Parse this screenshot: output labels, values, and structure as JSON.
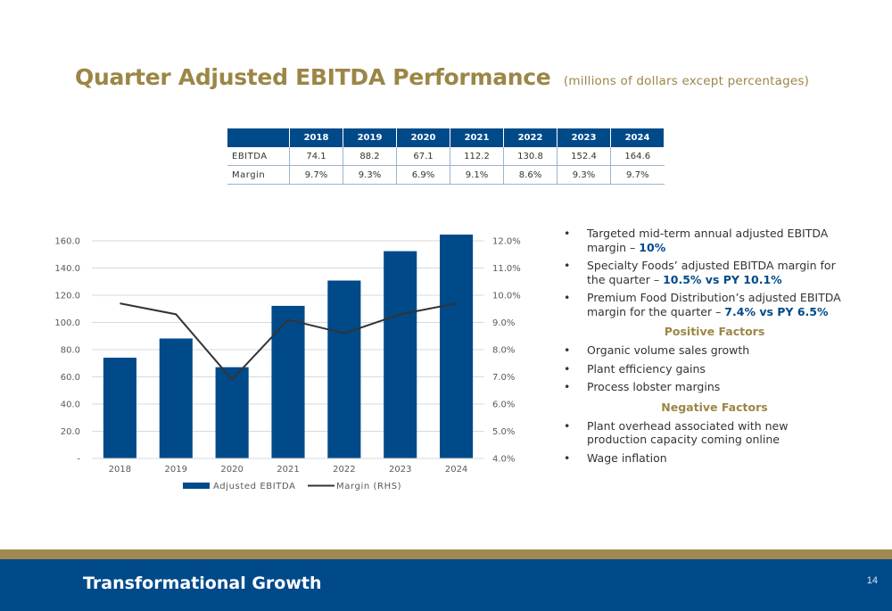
{
  "header": {
    "title": "Quarter Adjusted EBITDA Performance",
    "subtitle": "(millions of dollars except percentages)"
  },
  "table": {
    "years": [
      "2018",
      "2019",
      "2020",
      "2021",
      "2022",
      "2023",
      "2024"
    ],
    "rows": [
      {
        "label": "EBITDA",
        "values": [
          "74.1",
          "88.2",
          "67.1",
          "112.2",
          "130.8",
          "152.4",
          "164.6"
        ]
      },
      {
        "label": "Margin",
        "values": [
          "9.7%",
          "9.3%",
          "6.9%",
          "9.1%",
          "8.6%",
          "9.3%",
          "9.7%"
        ]
      }
    ]
  },
  "chart_data": {
    "type": "bar",
    "categories": [
      "2018",
      "2019",
      "2020",
      "2021",
      "2022",
      "2023",
      "2024"
    ],
    "series": [
      {
        "name": "Adjusted EBITDA",
        "type": "bar",
        "axis": "left",
        "values": [
          74.1,
          88.2,
          67.1,
          112.2,
          130.8,
          152.4,
          164.6
        ],
        "color": "#004a8a"
      },
      {
        "name": "Margin (RHS)",
        "type": "line",
        "axis": "right",
        "values": [
          9.7,
          9.3,
          6.9,
          9.1,
          8.6,
          9.3,
          9.7
        ],
        "color": "#333333"
      }
    ],
    "ylim": [
      0,
      160
    ],
    "y2lim": [
      4.0,
      12.0
    ],
    "yticks": [
      "-",
      "20.0",
      "40.0",
      "60.0",
      "80.0",
      "100.0",
      "120.0",
      "140.0",
      "160.0"
    ],
    "y2ticks": [
      "4.0%",
      "5.0%",
      "6.0%",
      "7.0%",
      "8.0%",
      "9.0%",
      "10.0%",
      "11.0%",
      "12.0%"
    ],
    "grid": true,
    "legend": "bottom"
  },
  "bullets": {
    "items": [
      {
        "pre": "Targeted mid-term annual adjusted EBITDA margin – ",
        "hl": "10%"
      },
      {
        "pre": "Specialty Foods’ adjusted EBITDA margin for the quarter – ",
        "hl": "10.5% vs PY 10.1%"
      },
      {
        "pre": "Premium Food Distribution’s adjusted EBITDA margin for the quarter – ",
        "hl": "7.4% vs PY 6.5%"
      }
    ],
    "positive_title": "Positive Factors",
    "positive": [
      "Organic volume sales growth",
      "Plant efficiency gains",
      "Process lobster margins"
    ],
    "negative_title": "Negative Factors",
    "negative": [
      "Plant overhead associated with new production capacity coming online",
      "Wage inflation"
    ]
  },
  "footer": {
    "title": "Transformational Growth",
    "page": "14"
  }
}
